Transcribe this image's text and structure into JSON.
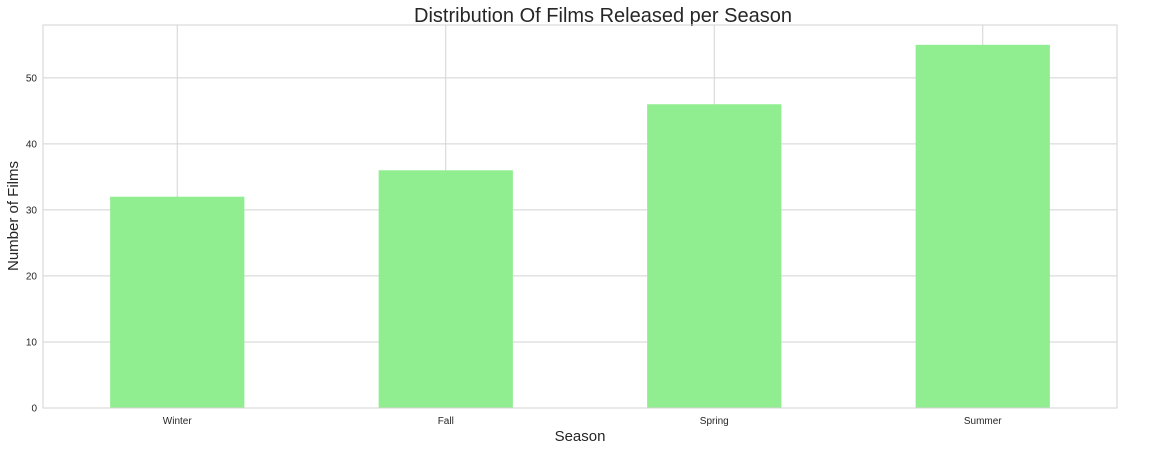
{
  "chart_data": {
    "type": "bar",
    "title": "Distribution Of Films Released per Season",
    "xlabel": "Season",
    "ylabel": "Number of Films",
    "categories": [
      "Winter",
      "Fall",
      "Spring",
      "Summer"
    ],
    "values": [
      32,
      36,
      46,
      55
    ],
    "ylim": [
      0,
      58
    ],
    "yticks": [
      0,
      10,
      20,
      30,
      40,
      50
    ],
    "bar_color": "#90ee90",
    "grid": true,
    "legend": "none"
  }
}
